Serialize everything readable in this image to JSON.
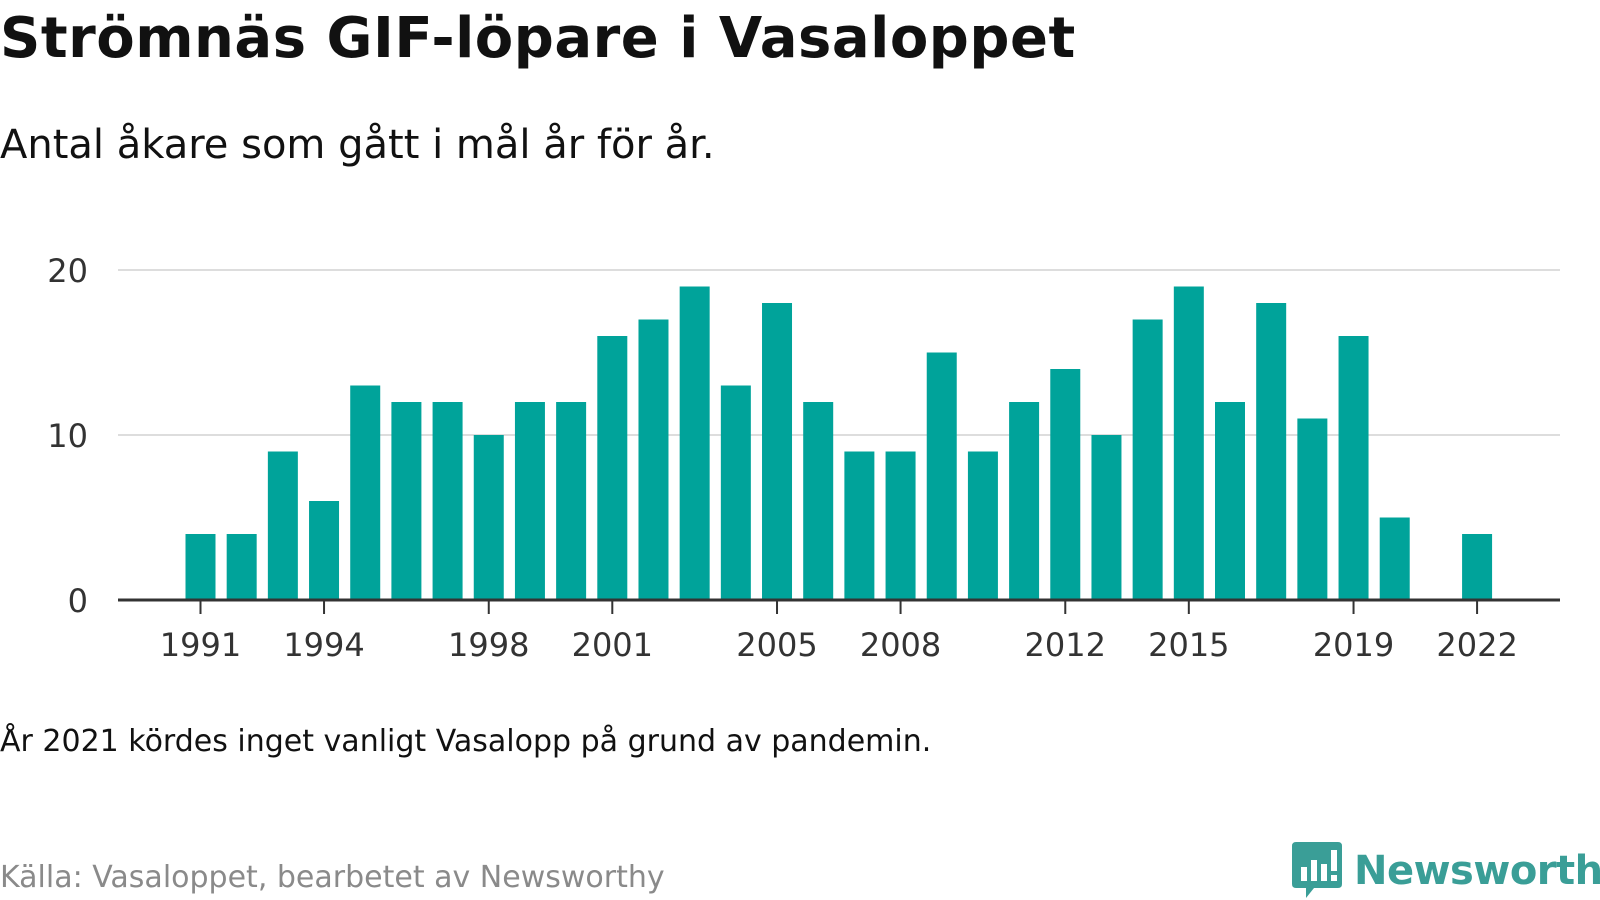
{
  "title": "Strömnäs GIF-löpare i Vasaloppet",
  "subtitle": "Antal åkare som gått i mål år för år.",
  "note": "År 2021 kördes inget vanligt Vasalopp på grund av pandemin.",
  "source": "Källa: Vasaloppet, bearbetet av Newsworthy",
  "brand": {
    "name": "Newsworthy",
    "color": "#3a9e97",
    "icon": "bar-chart-bubble-icon"
  },
  "colors": {
    "bar": "#00a39a",
    "grid": "#dddddd",
    "axis": "#333333"
  },
  "chart_data": {
    "type": "bar",
    "categories": [
      1991,
      1992,
      1993,
      1994,
      1995,
      1996,
      1997,
      1998,
      1999,
      2000,
      2001,
      2002,
      2003,
      2004,
      2005,
      2006,
      2007,
      2008,
      2009,
      2010,
      2011,
      2012,
      2013,
      2014,
      2015,
      2016,
      2017,
      2018,
      2019,
      2020,
      2021,
      2022
    ],
    "values": [
      4,
      4,
      9,
      6,
      13,
      12,
      12,
      10,
      12,
      12,
      16,
      17,
      19,
      13,
      18,
      12,
      9,
      9,
      15,
      9,
      12,
      14,
      10,
      17,
      19,
      12,
      18,
      11,
      16,
      5,
      null,
      4
    ],
    "xticks": [
      1991,
      1994,
      1998,
      2001,
      2005,
      2008,
      2012,
      2015,
      2019,
      2022
    ],
    "yticks": [
      0,
      10,
      20
    ],
    "ylim": [
      0,
      20
    ],
    "grid": "horizontal",
    "xlabel": "",
    "ylabel": ""
  }
}
